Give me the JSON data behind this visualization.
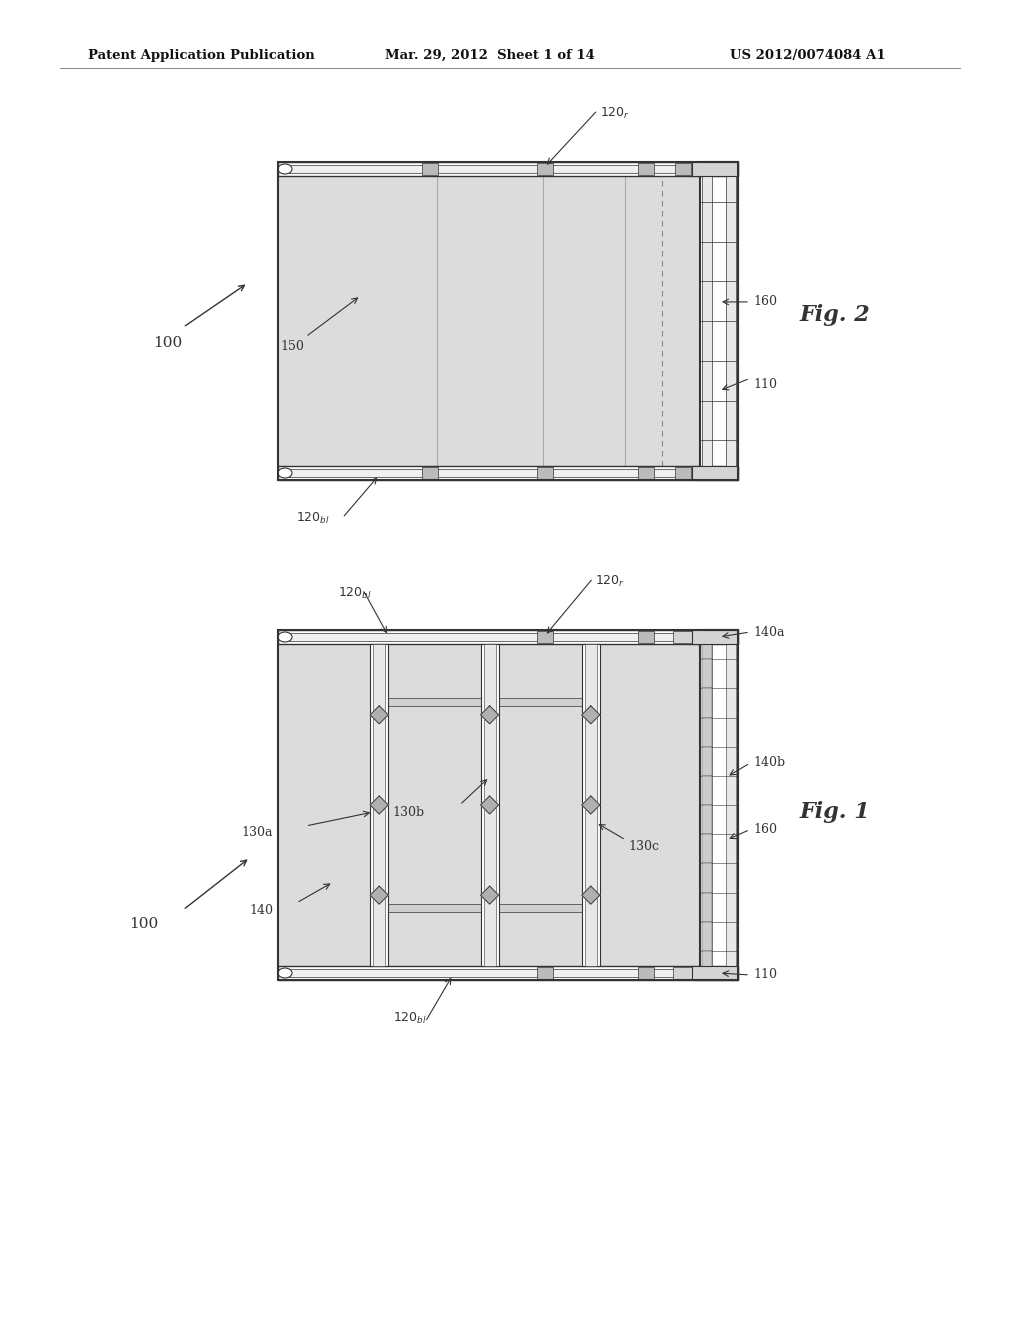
{
  "bg_color": "#ffffff",
  "header_text1": "Patent Application Publication",
  "header_text2": "Mar. 29, 2012  Sheet 1 of 14",
  "header_text3": "US 2012/0074084 A1",
  "fig1_label": "Fig. 1",
  "fig2_label": "Fig. 2",
  "draw_bg": "#d4d4d4",
  "line_color": "#333333",
  "white": "#ffffff",
  "light_gray": "#e8e8e8",
  "med_gray": "#bbbbbb",
  "dark_gray": "#666666"
}
